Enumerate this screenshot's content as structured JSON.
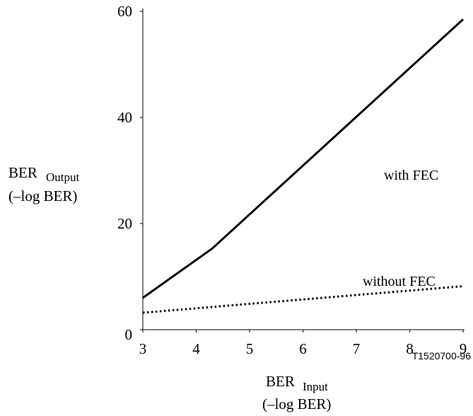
{
  "chart_data": {
    "type": "line",
    "x_ticks": [
      "3",
      "4",
      "5",
      "6",
      "7",
      "8",
      "9"
    ],
    "y_ticks": [
      "0",
      "20",
      "40",
      "60"
    ],
    "xlim": [
      3,
      9
    ],
    "ylim": [
      0,
      60
    ],
    "xlabel": {
      "main": "BER",
      "sub": "Input",
      "unit": "(–log BER)"
    },
    "ylabel": {
      "main": "BER",
      "sub": "Output",
      "unit": "(–log BER)"
    },
    "series": [
      {
        "name": "with FEC",
        "style": "solid",
        "x": [
          3,
          4.3,
          9
        ],
        "y": [
          6,
          15.3,
          58.5
        ]
      },
      {
        "name": "without FEC",
        "style": "dotted",
        "x": [
          3,
          9
        ],
        "y": [
          3.2,
          8.2
        ]
      }
    ],
    "reference": "T1520700-96",
    "grid": false
  }
}
